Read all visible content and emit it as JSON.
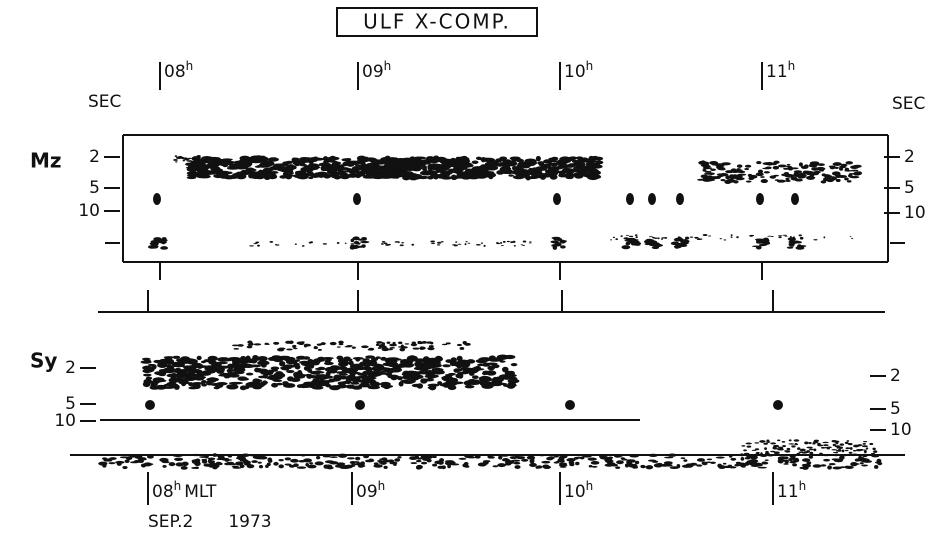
{
  "title": "ULF X-COMP.",
  "top_panel": {
    "station": "Mz",
    "unit_left": "SEC",
    "unit_right": "SEC",
    "periods_left": [
      "2",
      "5",
      "10"
    ],
    "periods_right": [
      "2",
      "5",
      "10"
    ],
    "hours": [
      {
        "number": "08",
        "sup": "h"
      },
      {
        "number": "09",
        "sup": "h"
      },
      {
        "number": "10",
        "sup": "h"
      },
      {
        "number": "11",
        "sup": "h"
      }
    ]
  },
  "bottom_panel": {
    "station": "Sy",
    "periods_left": [
      "2",
      "5",
      "10"
    ],
    "periods_right": [
      "2",
      "5",
      "10"
    ],
    "hours": [
      {
        "number": "08",
        "sup": "h",
        "suffix": "MLT"
      },
      {
        "number": "09",
        "sup": "h"
      },
      {
        "number": "10",
        "sup": "h"
      },
      {
        "number": "11",
        "sup": "h"
      }
    ]
  },
  "date": {
    "day": "SEP.2",
    "year": "1973"
  }
}
